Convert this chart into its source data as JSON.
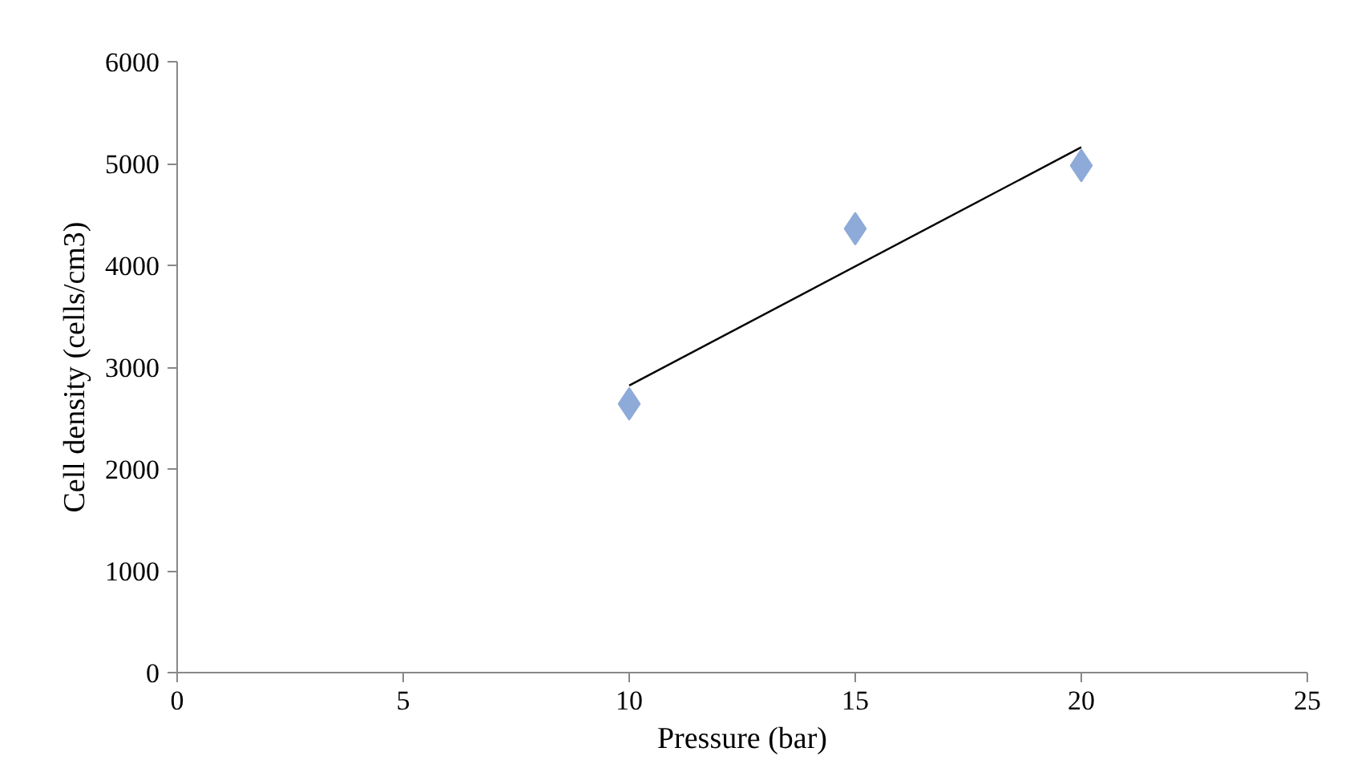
{
  "chart_data": {
    "type": "scatter",
    "xlabel": "Pressure (bar)",
    "ylabel": "Cell density (cells/cm3)",
    "x": [
      10,
      15,
      20
    ],
    "series": [
      {
        "color": "#8eaad8",
        "values": [
          2640,
          4360,
          4980
        ],
        "marker": "diamond"
      },
      {
        "type": "line",
        "color": "#000000",
        "x": [
          10,
          20
        ],
        "values": [
          2820,
          5160
        ],
        "marker": "none",
        "line_style": "solid"
      }
    ],
    "xlim": [
      0,
      25
    ],
    "xticks": [
      0,
      5,
      10,
      15,
      20,
      25
    ],
    "ylim": [
      0,
      6000
    ],
    "yticks": [
      0,
      1000,
      2000,
      3000,
      4000,
      5000,
      6000
    ],
    "grid": false
  }
}
